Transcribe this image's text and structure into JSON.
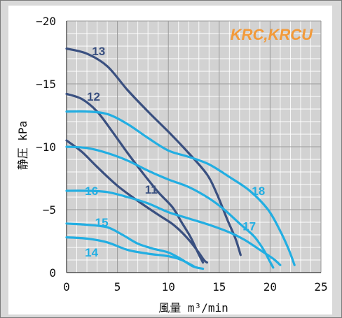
{
  "chart_data": {
    "type": "line",
    "badge": "KRC,KRCU",
    "xlabel": "風量 m³/min",
    "ylabel": "静圧 kPa",
    "xlim": [
      0,
      25
    ],
    "ylim": [
      0,
      -20
    ],
    "x_ticks": [
      "0",
      "5",
      "10",
      "15",
      "20",
      "25"
    ],
    "y_ticks": [
      "0",
      "−5",
      "−10",
      "−15",
      "−20"
    ],
    "grid": true,
    "colors": {
      "dark": "#3a5080",
      "light": "#22aee2",
      "badge": "#f29a3a",
      "grid": "#a8a8a8",
      "plot_bg": "#d2d2d2",
      "frame_bg": "#d9d9d9"
    },
    "series": [
      {
        "name": "13",
        "color": "dark",
        "label_at": [
          2.5,
          -17.6
        ],
        "points": [
          [
            0,
            -17.8
          ],
          [
            2,
            -17.4
          ],
          [
            4,
            -16.4
          ],
          [
            6,
            -14.5
          ],
          [
            8,
            -12.8
          ],
          [
            10,
            -11.2
          ],
          [
            12,
            -9.5
          ],
          [
            13.8,
            -7.8
          ],
          [
            14.8,
            -6.2
          ],
          [
            15.8,
            -4.2
          ],
          [
            16.6,
            -2.7
          ],
          [
            17.1,
            -1.4
          ]
        ]
      },
      {
        "name": "12",
        "color": "dark",
        "label_at": [
          2.0,
          -14.0
        ],
        "points": [
          [
            0,
            -14.2
          ],
          [
            1.5,
            -13.8
          ],
          [
            3,
            -12.8
          ],
          [
            4.5,
            -11.2
          ],
          [
            6,
            -9.5
          ],
          [
            7.5,
            -7.9
          ],
          [
            9,
            -6.4
          ],
          [
            10.4,
            -5.2
          ],
          [
            11.3,
            -4.0
          ],
          [
            12.2,
            -2.8
          ],
          [
            12.9,
            -1.6
          ],
          [
            13.4,
            -0.8
          ]
        ]
      },
      {
        "name": "11",
        "color": "dark",
        "label_at": [
          7.7,
          -6.6
        ],
        "points": [
          [
            0,
            -10.5
          ],
          [
            1.5,
            -9.6
          ],
          [
            3,
            -8.4
          ],
          [
            5,
            -6.9
          ],
          [
            7,
            -5.7
          ],
          [
            9,
            -4.6
          ],
          [
            10.5,
            -3.8
          ],
          [
            11.8,
            -2.8
          ],
          [
            12.8,
            -1.8
          ],
          [
            13.5,
            -1.0
          ],
          [
            13.8,
            -0.8
          ]
        ]
      },
      {
        "name": "18",
        "color": "light",
        "label_at": [
          18.2,
          -6.5
        ],
        "points": [
          [
            0,
            -12.8
          ],
          [
            2,
            -12.8
          ],
          [
            4,
            -12.6
          ],
          [
            6,
            -11.8
          ],
          [
            8,
            -10.7
          ],
          [
            10,
            -9.7
          ],
          [
            12,
            -9.2
          ],
          [
            14,
            -8.6
          ],
          [
            16,
            -7.6
          ],
          [
            18,
            -6.5
          ],
          [
            19.8,
            -5.0
          ],
          [
            21,
            -3.3
          ],
          [
            21.8,
            -1.9
          ],
          [
            22.4,
            -0.6
          ]
        ]
      },
      {
        "name": "17",
        "color": "light",
        "label_at": [
          17.3,
          -3.7
        ],
        "points": [
          [
            0,
            -10.0
          ],
          [
            2,
            -9.9
          ],
          [
            4,
            -9.5
          ],
          [
            6,
            -8.9
          ],
          [
            8,
            -8.1
          ],
          [
            10,
            -7.4
          ],
          [
            12,
            -6.8
          ],
          [
            14,
            -5.9
          ],
          [
            15.5,
            -5.0
          ],
          [
            17,
            -3.9
          ],
          [
            18.4,
            -2.9
          ],
          [
            19.3,
            -1.9
          ],
          [
            19.9,
            -1.0
          ],
          [
            20.3,
            -0.4
          ]
        ]
      },
      {
        "name": "16",
        "color": "light",
        "label_at": [
          1.8,
          -6.5
        ],
        "points": [
          [
            0,
            -6.5
          ],
          [
            2,
            -6.5
          ],
          [
            4,
            -6.4
          ],
          [
            6,
            -6.0
          ],
          [
            8,
            -5.5
          ],
          [
            10,
            -4.8
          ],
          [
            12,
            -4.3
          ],
          [
            14,
            -3.8
          ],
          [
            16,
            -3.2
          ],
          [
            17.5,
            -2.6
          ],
          [
            19,
            -1.8
          ],
          [
            20.3,
            -1.1
          ],
          [
            21,
            -0.6
          ]
        ]
      },
      {
        "name": "15",
        "color": "light",
        "label_at": [
          2.8,
          -4.0
        ],
        "points": [
          [
            0,
            -3.9
          ],
          [
            2,
            -3.8
          ],
          [
            4,
            -3.6
          ],
          [
            5.5,
            -3.0
          ],
          [
            7,
            -2.3
          ],
          [
            8.5,
            -1.9
          ],
          [
            10,
            -1.6
          ],
          [
            11.2,
            -1.1
          ],
          [
            12.4,
            -0.5
          ],
          [
            13.4,
            -0.3
          ]
        ]
      },
      {
        "name": "14",
        "color": "light",
        "label_at": [
          1.8,
          -1.6
        ],
        "points": [
          [
            0,
            -2.8
          ],
          [
            2,
            -2.7
          ],
          [
            4,
            -2.4
          ],
          [
            6,
            -1.8
          ],
          [
            8,
            -1.5
          ],
          [
            10,
            -1.3
          ],
          [
            11.3,
            -1.0
          ],
          [
            12.5,
            -0.5
          ]
        ]
      }
    ]
  }
}
